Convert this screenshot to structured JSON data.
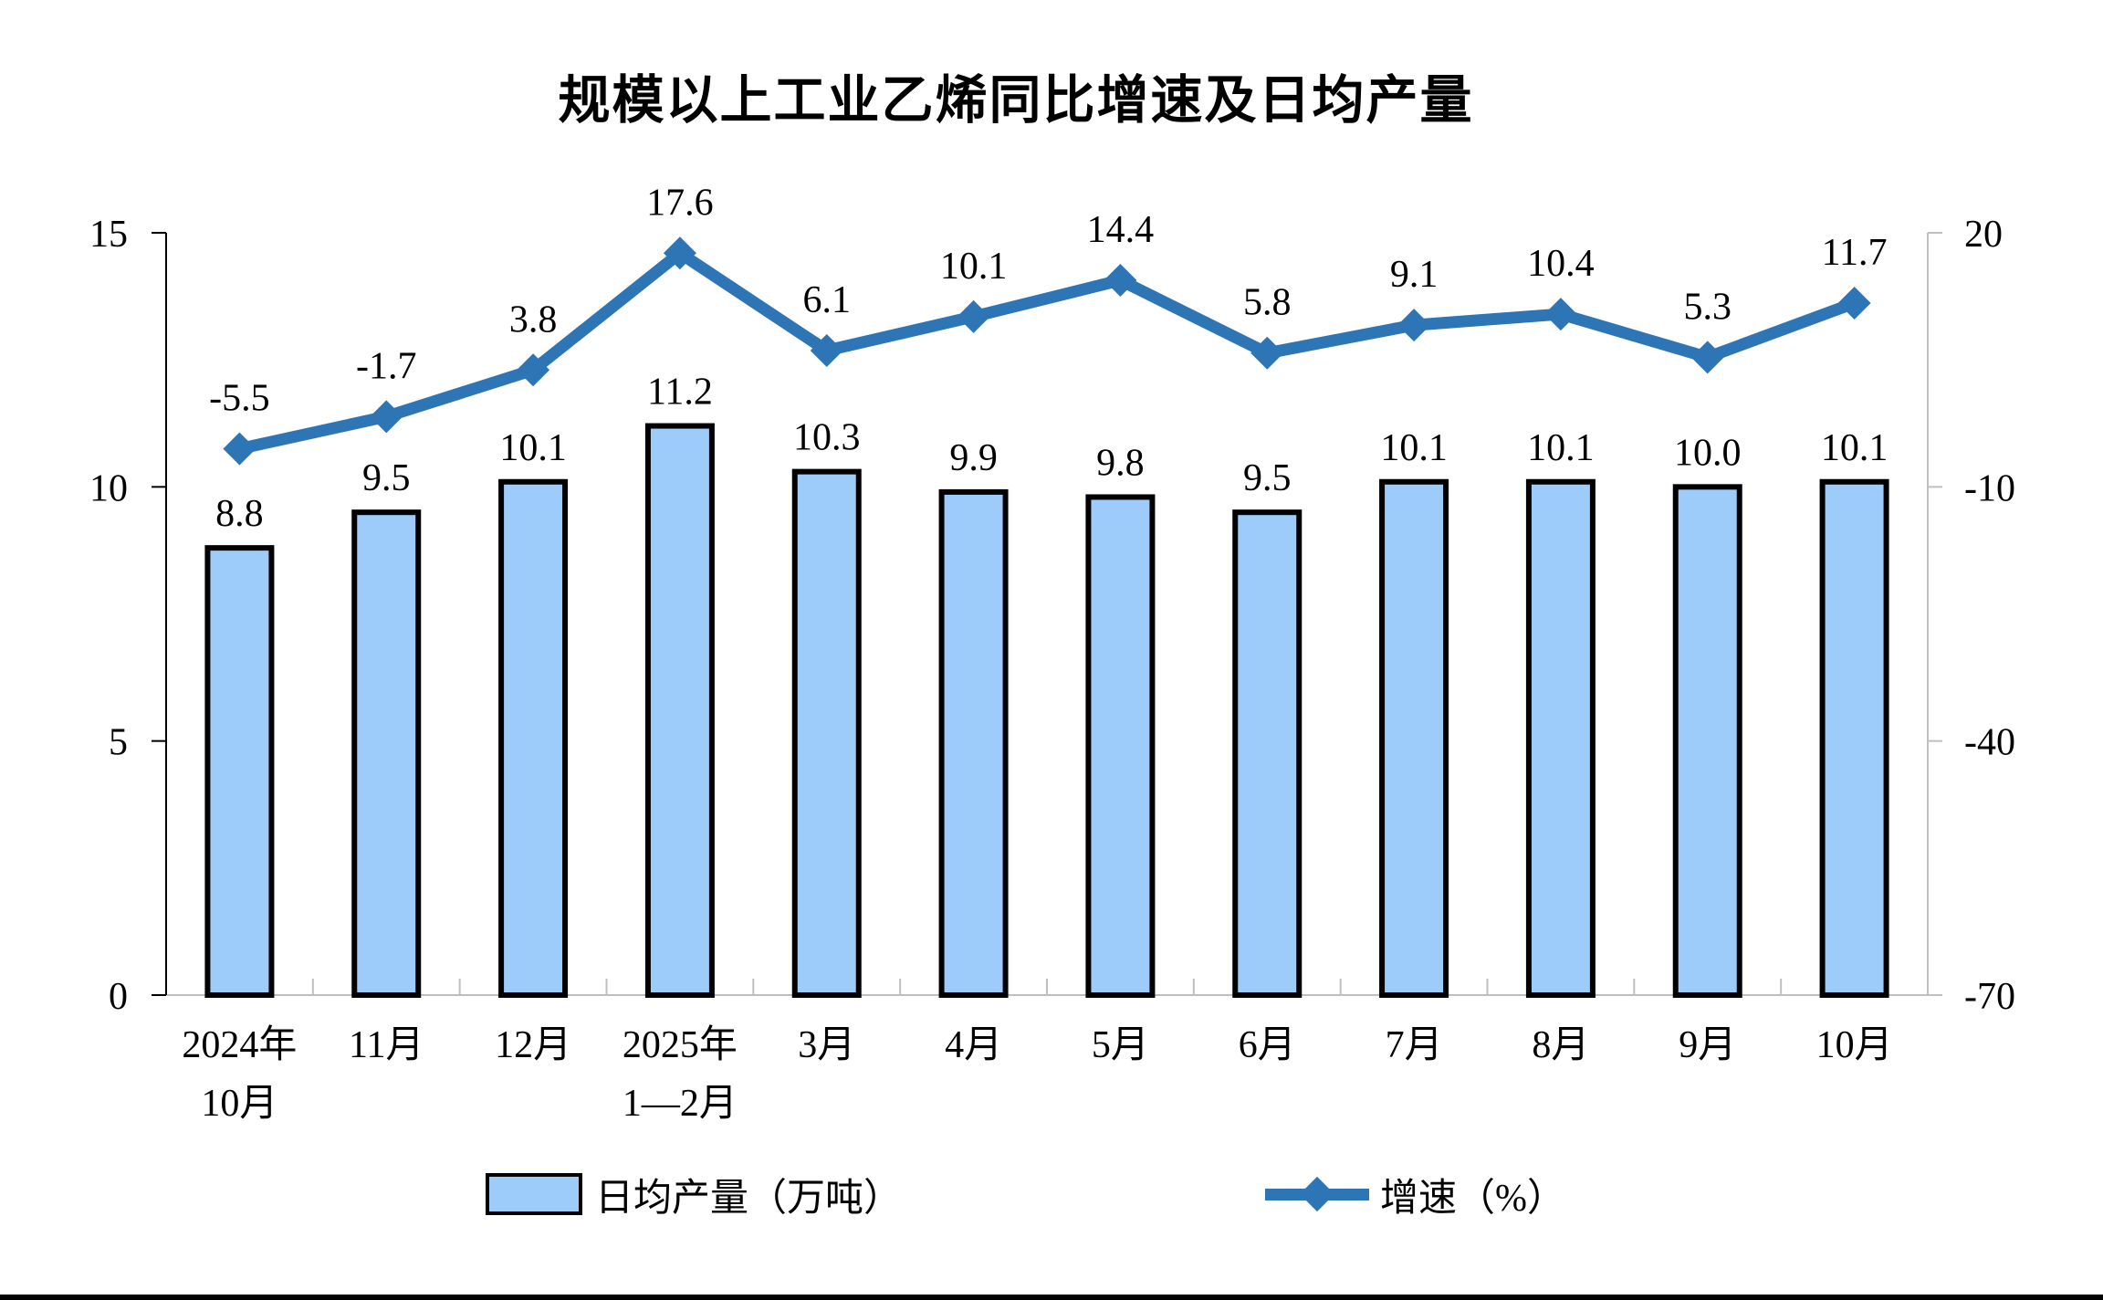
{
  "chart_data": {
    "type": "combo",
    "title": "规模以上工业乙烯同比增速及日均产量",
    "categories": [
      [
        "2024年",
        "10月"
      ],
      [
        "11月"
      ],
      [
        "12月"
      ],
      [
        "2025年",
        "1—2月"
      ],
      [
        "3月"
      ],
      [
        "4月"
      ],
      [
        "5月"
      ],
      [
        "6月"
      ],
      [
        "7月"
      ],
      [
        "8月"
      ],
      [
        "9月"
      ],
      [
        "10月"
      ]
    ],
    "series": [
      {
        "name": "日均产量（万吨）",
        "type": "bar",
        "axis": "left",
        "values": [
          8.8,
          9.5,
          10.1,
          11.2,
          10.3,
          9.9,
          9.8,
          9.5,
          10.1,
          10.1,
          10.0,
          10.1
        ],
        "fill": "#9DCBFA",
        "border": "#000000"
      },
      {
        "name": "增速（%）",
        "type": "line",
        "axis": "right",
        "values": [
          -5.5,
          -1.7,
          3.8,
          17.6,
          6.1,
          10.1,
          14.4,
          5.8,
          9.1,
          10.4,
          5.3,
          11.7
        ],
        "color": "#2E75B6",
        "marker": "diamond"
      }
    ],
    "left_axis": {
      "min": 0,
      "max": 15,
      "ticks": [
        0,
        5,
        10,
        15
      ]
    },
    "right_axis": {
      "min": -70,
      "max": 20,
      "ticks": [
        20,
        -10,
        -40,
        -70
      ]
    },
    "axis_color_primary": "#000000",
    "axis_color_secondary": "#BFBFBF",
    "legend_position": "bottom",
    "grid": false
  }
}
